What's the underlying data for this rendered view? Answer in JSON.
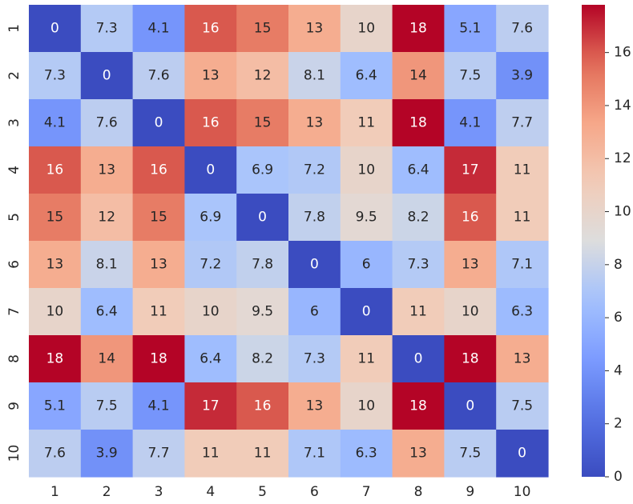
{
  "chart_data": {
    "type": "heatmap",
    "title": "",
    "xlabel": "",
    "ylabel": "",
    "x_labels": [
      "1",
      "2",
      "3",
      "4",
      "5",
      "6",
      "7",
      "8",
      "9",
      "10"
    ],
    "y_labels": [
      "1",
      "2",
      "3",
      "4",
      "5",
      "6",
      "7",
      "8",
      "9",
      "10"
    ],
    "values": [
      [
        0,
        7.3,
        4.1,
        16,
        15,
        13,
        10,
        18,
        5.1,
        7.6
      ],
      [
        7.3,
        0,
        7.6,
        13,
        12,
        8.1,
        6.4,
        14,
        7.5,
        3.9
      ],
      [
        4.1,
        7.6,
        0,
        16,
        15,
        13,
        11,
        18,
        4.1,
        7.7
      ],
      [
        16,
        13,
        16,
        0,
        6.9,
        7.2,
        10,
        6.4,
        17,
        11
      ],
      [
        15,
        12,
        15,
        6.9,
        0,
        7.8,
        9.5,
        8.2,
        16,
        11
      ],
      [
        13,
        8.1,
        13,
        7.2,
        7.8,
        0,
        6,
        7.3,
        13,
        7.1
      ],
      [
        10,
        6.4,
        11,
        10,
        9.5,
        6,
        0,
        11,
        10,
        6.3
      ],
      [
        18,
        14,
        18,
        6.4,
        8.2,
        7.3,
        11,
        0,
        18,
        13
      ],
      [
        5.1,
        7.5,
        4.1,
        17,
        16,
        13,
        10,
        18,
        0,
        7.5
      ],
      [
        7.6,
        3.9,
        7.7,
        11,
        11,
        7.1,
        6.3,
        13,
        7.5,
        0
      ]
    ],
    "value_range": [
      0,
      17.8
    ],
    "colormap": "coolwarm",
    "colorbar": {
      "ticks": [
        0,
        2,
        4,
        6,
        8,
        10,
        12,
        14,
        16
      ]
    },
    "annotations": true,
    "grid": false,
    "colors": {
      "low": "#3b4cc0",
      "mid": "#dddddd",
      "high": "#b40426"
    }
  }
}
